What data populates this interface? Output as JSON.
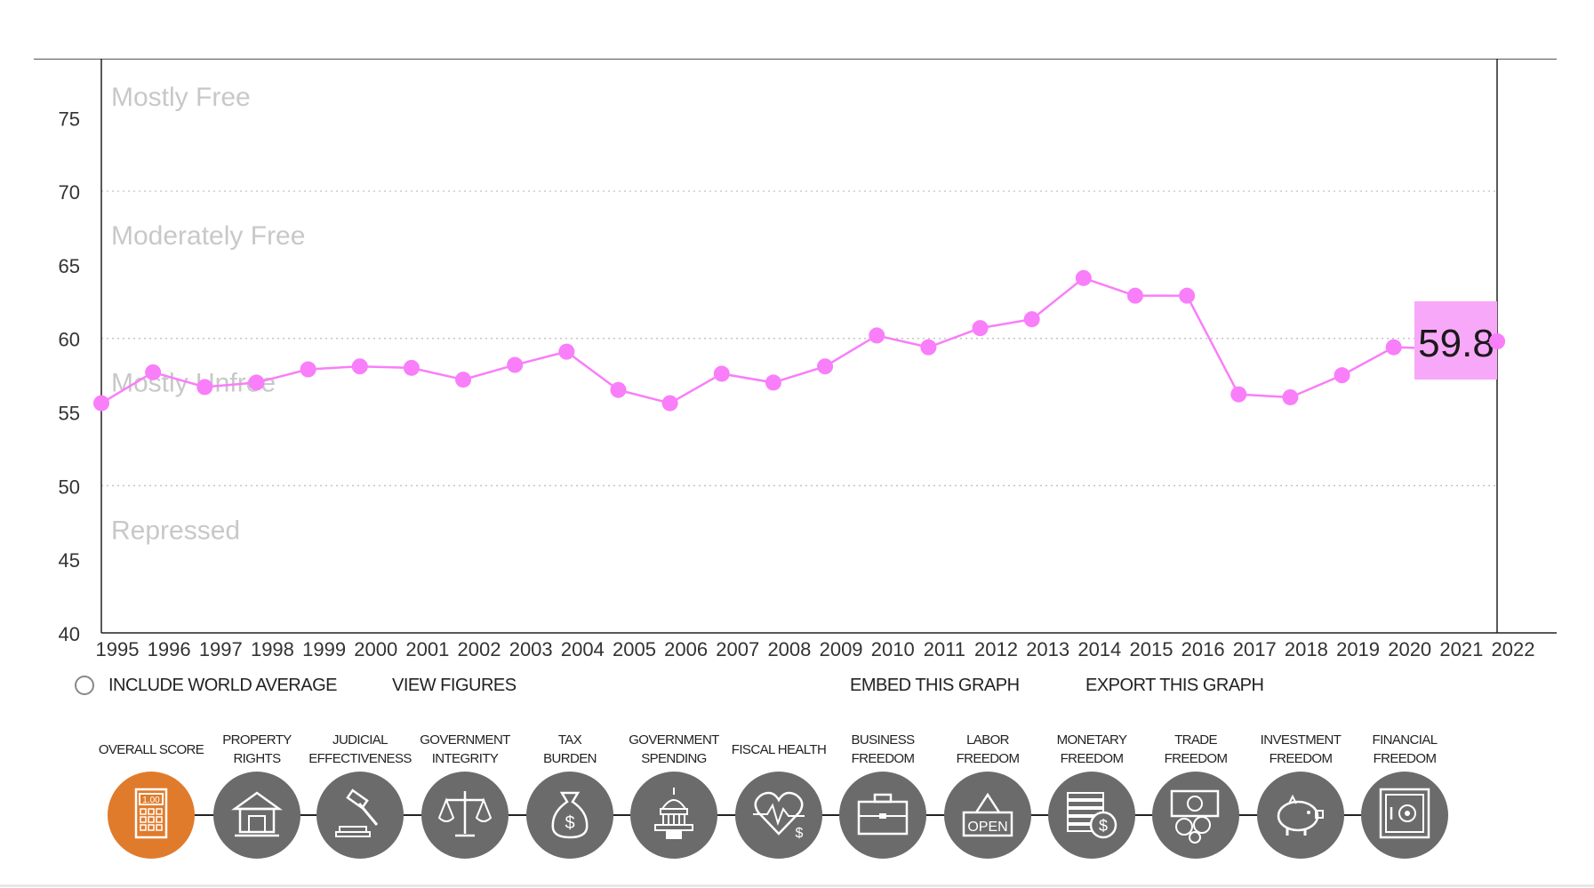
{
  "chart_data": {
    "type": "line",
    "x": [
      "1995",
      "1996",
      "1997",
      "1998",
      "1999",
      "2000",
      "2001",
      "2002",
      "2003",
      "2004",
      "2005",
      "2006",
      "2007",
      "2008",
      "2009",
      "2010",
      "2011",
      "2012",
      "2013",
      "2014",
      "2015",
      "2016",
      "2017",
      "2018",
      "2019",
      "2020",
      "2021",
      "2022"
    ],
    "series": [
      {
        "values": [
          55.6,
          57.7,
          56.7,
          57.0,
          57.9,
          58.1,
          58.0,
          57.2,
          58.2,
          59.1,
          56.5,
          55.6,
          57.6,
          57.0,
          58.1,
          60.2,
          59.4,
          60.7,
          61.3,
          64.1,
          62.9,
          62.9,
          56.2,
          56.0,
          57.5,
          59.4,
          59.3,
          59.8
        ],
        "color": "#f97ef9"
      }
    ],
    "ylim": [
      40,
      79
    ],
    "yticks": [
      40,
      45,
      50,
      55,
      60,
      65,
      70,
      75
    ],
    "zones": [
      {
        "label": "Mostly Free",
        "from": 70,
        "to": 80
      },
      {
        "label": "Moderately Free",
        "from": 60,
        "to": 70
      },
      {
        "label": "Mostly Unfree",
        "from": 50,
        "to": 60
      },
      {
        "label": "Repressed",
        "from": 40,
        "to": 50
      }
    ],
    "highlight": {
      "value_label": "59.8",
      "color": "#f8a8f8"
    },
    "grid": "dotted horizontal at zone boundaries",
    "title": "",
    "xlabel": "",
    "ylabel": ""
  },
  "controls": {
    "world_average": "INCLUDE WORLD AVERAGE",
    "view_figures": "VIEW FIGURES",
    "embed": "EMBED THIS GRAPH",
    "export": "EXPORT THIS GRAPH"
  },
  "categories": [
    {
      "line1": "OVERALL SCORE",
      "line2": "",
      "icon": "calculator-icon",
      "active": true,
      "icon_text": "1.00"
    },
    {
      "line1": "PROPERTY",
      "line2": "RIGHTS",
      "icon": "house-icon"
    },
    {
      "line1": "JUDICIAL",
      "line2": "EFFECTIVENESS",
      "icon": "gavel-icon"
    },
    {
      "line1": "GOVERNMENT",
      "line2": "INTEGRITY",
      "icon": "scales-icon"
    },
    {
      "line1": "TAX",
      "line2": "BURDEN",
      "icon": "money-bag-icon",
      "icon_text": "$"
    },
    {
      "line1": "GOVERNMENT",
      "line2": "SPENDING",
      "icon": "capitol-icon"
    },
    {
      "line1": "FISCAL HEALTH",
      "line2": "",
      "icon": "heart-pulse-icon",
      "icon_text": "$"
    },
    {
      "line1": "BUSINESS",
      "line2": "FREEDOM",
      "icon": "briefcase-icon"
    },
    {
      "line1": "LABOR",
      "line2": "FREEDOM",
      "icon": "open-sign-icon",
      "icon_text": "OPEN"
    },
    {
      "line1": "MONETARY",
      "line2": "FREEDOM",
      "icon": "coins-icon",
      "icon_text": "$"
    },
    {
      "line1": "TRADE",
      "line2": "FREEDOM",
      "icon": "currency-exchange-icon"
    },
    {
      "line1": "INVESTMENT",
      "line2": "FREEDOM",
      "icon": "piggy-bank-icon"
    },
    {
      "line1": "FINANCIAL",
      "line2": "FREEDOM",
      "icon": "safe-icon"
    }
  ],
  "colors": {
    "accent": "#f97ef9",
    "active_category": "#e07b2c",
    "category_bg": "#6b6b6b"
  }
}
